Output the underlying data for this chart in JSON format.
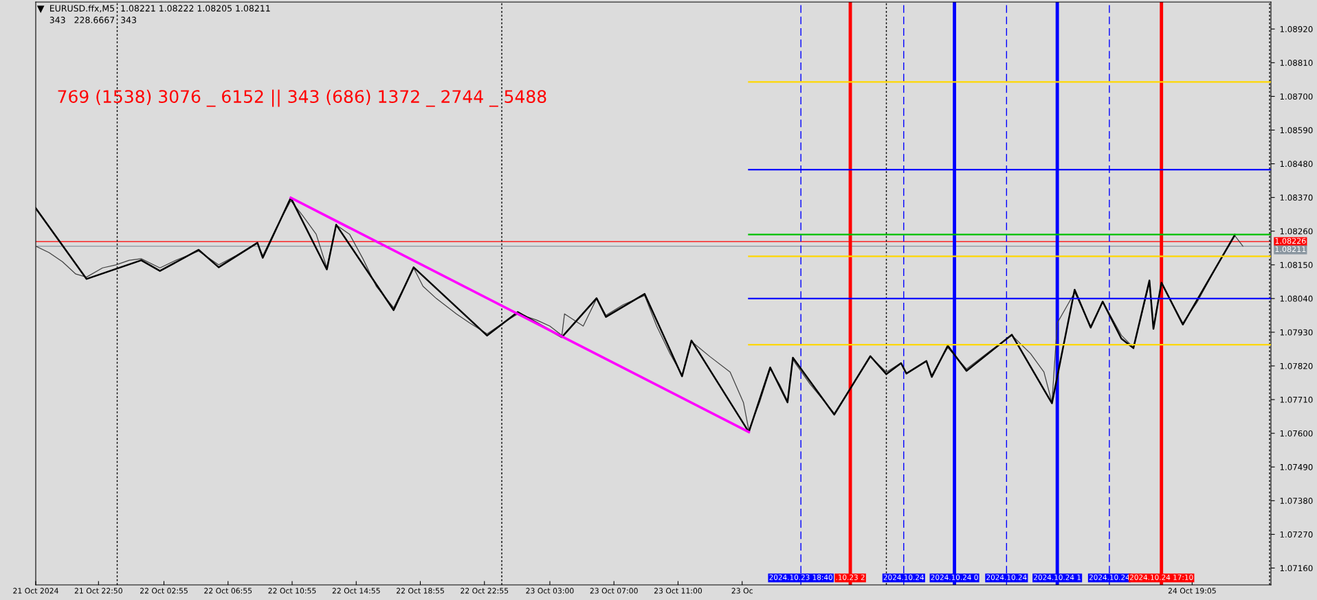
{
  "chart_data": {
    "type": "line",
    "title": "EURUSD.ffx,M5  1.08221 1.08222 1.08205 1.08211",
    "subtitle": "343   228.6667  343",
    "annotations": [
      "769 (1538) 3076 _ 6152 || 343 (686) 1372 _ 2744 _ 5488"
    ],
    "xlim": [
      "2024-10-21T18:55",
      "2024-10-25T00:00"
    ],
    "ylim": [
      1.07105,
      1.09008
    ],
    "xticks": [
      {
        "value": "2024-10-21T18:55",
        "label": "21 Oct 2024"
      },
      {
        "value": "2024-10-21T22:50",
        "label": "21 Oct 22:50"
      },
      {
        "value": "2024-10-22T02:55",
        "label": "22 Oct 02:55"
      },
      {
        "value": "2024-10-22T06:55",
        "label": "22 Oct 06:55"
      },
      {
        "value": "2024-10-22T10:55",
        "label": "22 Oct 10:55"
      },
      {
        "value": "2024-10-22T14:55",
        "label": "22 Oct 14:55"
      },
      {
        "value": "2024-10-22T18:55",
        "label": "22 Oct 18:55"
      },
      {
        "value": "2024-10-22T22:55",
        "label": "22 Oct 22:55"
      },
      {
        "value": "2024-10-23T03:00",
        "label": "23 Oct 03:00"
      },
      {
        "value": "2024-10-23T07:00",
        "label": "23 Oct 07:00"
      },
      {
        "value": "2024-10-23T11:00",
        "label": "23 Oct 11:00"
      },
      {
        "value": "2024-10-23T15:00",
        "label": "23 Oc"
      },
      {
        "value": "2024-10-24T19:05",
        "label": "24 Oct 19:05"
      }
    ],
    "yticks": [
      {
        "value": 1.0716,
        "label": "1.07160"
      },
      {
        "value": 1.0727,
        "label": "1.07270"
      },
      {
        "value": 1.0738,
        "label": "1.07380"
      },
      {
        "value": 1.0749,
        "label": "1.07490"
      },
      {
        "value": 1.076,
        "label": "1.07600"
      },
      {
        "value": 1.0771,
        "label": "1.07710"
      },
      {
        "value": 1.0782,
        "label": "1.07820"
      },
      {
        "value": 1.0793,
        "label": "1.07930"
      },
      {
        "value": 1.0804,
        "label": "1.08040"
      },
      {
        "value": 1.0815,
        "label": "1.08150"
      },
      {
        "value": 1.0826,
        "label": "1.08260"
      },
      {
        "value": 1.0837,
        "label": "1.08370"
      },
      {
        "value": 1.0848,
        "label": "1.08480"
      },
      {
        "value": 1.0859,
        "label": "1.08590"
      },
      {
        "value": 1.087,
        "label": "1.08700"
      },
      {
        "value": 1.0881,
        "label": "1.08810"
      },
      {
        "value": 1.0892,
        "label": "1.08920"
      }
    ],
    "series": [
      {
        "color": "#404040",
        "x": [
          "2024-10-21T18:55",
          "2024-10-21T19:45",
          "2024-10-21T20:35",
          "2024-10-21T21:25",
          "2024-10-21T22:05",
          "2024-10-21T23:05",
          "2024-10-21T23:55",
          "2024-10-22T00:45",
          "2024-10-22T01:30",
          "2024-10-22T02:40",
          "2024-10-22T03:40",
          "2024-10-22T05:05",
          "2024-10-22T06:20",
          "2024-10-22T07:25",
          "2024-10-22T08:45",
          "2024-10-22T09:05",
          "2024-10-22T09:55",
          "2024-10-22T10:50",
          "2024-10-22T11:35",
          "2024-10-22T12:25",
          "2024-10-22T13:05",
          "2024-10-22T13:40",
          "2024-10-22T14:30",
          "2024-10-22T15:20",
          "2024-10-22T16:10",
          "2024-10-22T17:15",
          "2024-10-22T17:50",
          "2024-10-22T18:30",
          "2024-10-22T19:05",
          "2024-10-22T19:55",
          "2024-10-22T21:10",
          "2024-10-22T22:00",
          "2024-10-22T23:05",
          "2024-10-23T00:05",
          "2024-10-23T01:00",
          "2024-10-23T02:10",
          "2024-10-23T03:00",
          "2024-10-23T03:45",
          "2024-10-23T03:55",
          "2024-10-23T05:05",
          "2024-10-23T05:55",
          "2024-10-23T06:30",
          "2024-10-23T07:35",
          "2024-10-23T08:55",
          "2024-10-23T09:40",
          "2024-10-23T10:30",
          "2024-10-23T11:15",
          "2024-10-23T11:50",
          "2024-10-23T13:00",
          "2024-10-23T14:15",
          "2024-10-23T15:05",
          "2024-10-23T15:25",
          "2024-10-23T16:05",
          "2024-10-23T16:45",
          "2024-10-23T17:20",
          "2024-10-23T17:50",
          "2024-10-23T18:10",
          "2024-10-23T19:15",
          "2024-10-23T20:45",
          "2024-10-23T21:55",
          "2024-10-23T23:00",
          "2024-10-24T00:00",
          "2024-10-24T00:55",
          "2024-10-24T01:15",
          "2024-10-24T02:30",
          "2024-10-24T02:50",
          "2024-10-24T03:50",
          "2024-10-24T05:00",
          "2024-10-24T06:30",
          "2024-10-24T07:50",
          "2024-10-24T09:00",
          "2024-10-24T09:50",
          "2024-10-24T10:20",
          "2024-10-24T10:40",
          "2024-10-24T11:45",
          "2024-10-24T12:45",
          "2024-10-24T13:30",
          "2024-10-24T14:40",
          "2024-10-24T15:25",
          "2024-10-24T16:25",
          "2024-10-24T16:40",
          "2024-10-24T17:10",
          "2024-10-24T18:30",
          "2024-10-24T19:25",
          "2024-10-24T20:40",
          "2024-10-24T21:45",
          "2024-10-24T22:15"
        ],
        "values": [
          1.08211,
          1.0819,
          1.0816,
          1.0812,
          1.0811,
          1.0814,
          1.0815,
          1.08165,
          1.0817,
          1.0814,
          1.08165,
          1.08195,
          1.0815,
          1.0818,
          1.0822,
          1.0818,
          1.0827,
          1.0836,
          1.0831,
          1.0825,
          1.0814,
          1.0828,
          1.0825,
          1.0817,
          1.0808,
          1.0801,
          1.0807,
          1.0814,
          1.0808,
          1.0804,
          1.0799,
          1.0796,
          1.07925,
          1.0796,
          1.0799,
          1.0797,
          1.0795,
          1.0792,
          1.0799,
          1.0795,
          1.0804,
          1.07985,
          1.0802,
          1.0805,
          1.0795,
          1.0786,
          1.0779,
          1.079,
          1.0785,
          1.078,
          1.077,
          1.0761,
          1.077,
          1.0781,
          1.0776,
          1.07705,
          1.0784,
          1.0776,
          1.07665,
          1.0776,
          1.0785,
          1.078,
          1.0783,
          1.07795,
          1.07835,
          1.0779,
          1.0788,
          1.0781,
          1.0787,
          1.0792,
          1.0786,
          1.078,
          1.077,
          1.0796,
          1.0806,
          1.0795,
          1.0803,
          1.0792,
          1.0788,
          1.0809,
          1.0795,
          1.0809,
          1.0796,
          1.0803,
          1.0815,
          1.08245,
          1.08211
        ]
      },
      {
        "color": "#000000",
        "x": [
          "2024-10-21T18:55",
          "2024-10-21T22:05",
          "2024-10-22T01:30",
          "2024-10-22T02:40",
          "2024-10-22T05:05",
          "2024-10-22T06:20",
          "2024-10-22T08:45",
          "2024-10-22T09:05",
          "2024-10-22T10:50",
          "2024-10-22T13:05",
          "2024-10-22T13:40",
          "2024-10-22T17:15",
          "2024-10-22T18:30",
          "2024-10-22T23:05",
          "2024-10-23T01:00",
          "2024-10-23T03:45",
          "2024-10-23T05:55",
          "2024-10-23T06:30",
          "2024-10-23T08:55",
          "2024-10-23T11:15",
          "2024-10-23T11:50",
          "2024-10-23T15:25",
          "2024-10-23T16:45",
          "2024-10-23T17:50",
          "2024-10-23T18:10",
          "2024-10-23T20:45",
          "2024-10-23T23:00",
          "2024-10-24T00:00",
          "2024-10-24T00:55",
          "2024-10-24T01:15",
          "2024-10-24T02:30",
          "2024-10-24T02:50",
          "2024-10-24T03:50",
          "2024-10-24T05:00",
          "2024-10-24T07:50",
          "2024-10-24T10:20",
          "2024-10-24T11:45",
          "2024-10-24T12:45",
          "2024-10-24T13:30",
          "2024-10-24T14:40",
          "2024-10-24T15:25",
          "2024-10-24T16:25",
          "2024-10-24T16:40",
          "2024-10-24T17:10",
          "2024-10-24T18:30",
          "2024-10-24T21:45"
        ],
        "values": [
          1.08335,
          1.08104,
          1.08165,
          1.0813,
          1.08199,
          1.08142,
          1.08222,
          1.08173,
          1.08369,
          1.08135,
          1.08281,
          1.08002,
          1.08142,
          1.07919,
          1.07996,
          1.07914,
          1.08041,
          1.0798,
          1.08055,
          1.07786,
          1.07903,
          1.07604,
          1.07815,
          1.07701,
          1.07847,
          1.07661,
          1.07852,
          1.07793,
          1.07829,
          1.07795,
          1.07836,
          1.07784,
          1.07886,
          1.07804,
          1.07922,
          1.07698,
          1.08069,
          1.07945,
          1.0803,
          1.07909,
          1.07878,
          1.08099,
          1.07941,
          1.08092,
          1.07955,
          1.08248
        ]
      },
      {
        "color": "#ff00ff",
        "x": [
          "2024-10-22T10:50",
          "2024-10-23T15:25"
        ],
        "values": [
          1.08369,
          1.07604
        ]
      },
      {
        "color": "#ffd700",
        "x": [
          "2024-10-23T15:25",
          "2024-10-25T00:00"
        ],
        "values": [
          1.08747,
          1.08747
        ]
      },
      {
        "color": "#0000ff",
        "x": [
          "2024-10-23T15:25",
          "2024-10-25T00:00"
        ],
        "values": [
          1.08461,
          1.08461
        ]
      },
      {
        "color": "#00c000",
        "x": [
          "2024-10-23T15:25",
          "2024-10-25T00:00"
        ],
        "values": [
          1.08249,
          1.08249
        ]
      },
      {
        "color": "#ffd700",
        "x": [
          "2024-10-23T15:25",
          "2024-10-25T00:00"
        ],
        "values": [
          1.08178,
          1.08178
        ]
      },
      {
        "color": "#0000ff",
        "x": [
          "2024-10-23T15:25",
          "2024-10-25T00:00"
        ],
        "values": [
          1.0804,
          1.0804
        ]
      },
      {
        "color": "#ffd700",
        "x": [
          "2024-10-23T15:25",
          "2024-10-25T00:00"
        ],
        "values": [
          1.07889,
          1.07889
        ]
      }
    ],
    "ref_lines": [
      {
        "axis": "y",
        "value": 1.08226,
        "label": "1.08226",
        "color": "#ff0000",
        "line_style": "solid"
      },
      {
        "axis": "y",
        "value": 1.08211,
        "label": "1.08211",
        "color": "#8a96a0",
        "line_style": "solid"
      },
      {
        "axis": "x",
        "value": "2024-10-22T00:00",
        "color": "#000000",
        "line_style": "dotted"
      },
      {
        "axis": "x",
        "value": "2024-10-23T00:00",
        "color": "#000000",
        "line_style": "dotted"
      },
      {
        "axis": "x",
        "value": "2024-10-24T00:00",
        "color": "#000000",
        "line_style": "dotted"
      },
      {
        "axis": "x",
        "value": "2024-10-24T23:55",
        "color": "#000000",
        "line_style": "dotted"
      },
      {
        "axis": "x",
        "value": "2024-10-23T18:40",
        "label": "2024.10.23 18:40",
        "color": "#0000ff",
        "line_style": "dashed"
      },
      {
        "axis": "x",
        "value": "2024-10-23T21:45",
        "label": ".10.23 2",
        "color": "#ff0000",
        "line_style": "solid"
      },
      {
        "axis": "x",
        "value": "2024-10-24T01:05",
        "label": "2024.10.24",
        "color": "#0000ff",
        "line_style": "dashed"
      },
      {
        "axis": "x",
        "value": "2024-10-24T04:15",
        "label": "2024.10.24 0",
        "color": "#0000ff",
        "line_style": "solid"
      },
      {
        "axis": "x",
        "value": "2024-10-24T07:30",
        "label": "2024.10.24",
        "color": "#0000ff",
        "line_style": "dashed"
      },
      {
        "axis": "x",
        "value": "2024-10-24T10:40",
        "label": "2024.10.24 1",
        "color": "#0000ff",
        "line_style": "solid"
      },
      {
        "axis": "x",
        "value": "2024-10-24T13:55",
        "label": "2024.10.24",
        "color": "#0000ff",
        "line_style": "dashed"
      },
      {
        "axis": "x",
        "value": "2024-10-24T17:10",
        "label": "2024.10.24 17:10",
        "color": "#ff0000",
        "line_style": "solid"
      }
    ]
  }
}
